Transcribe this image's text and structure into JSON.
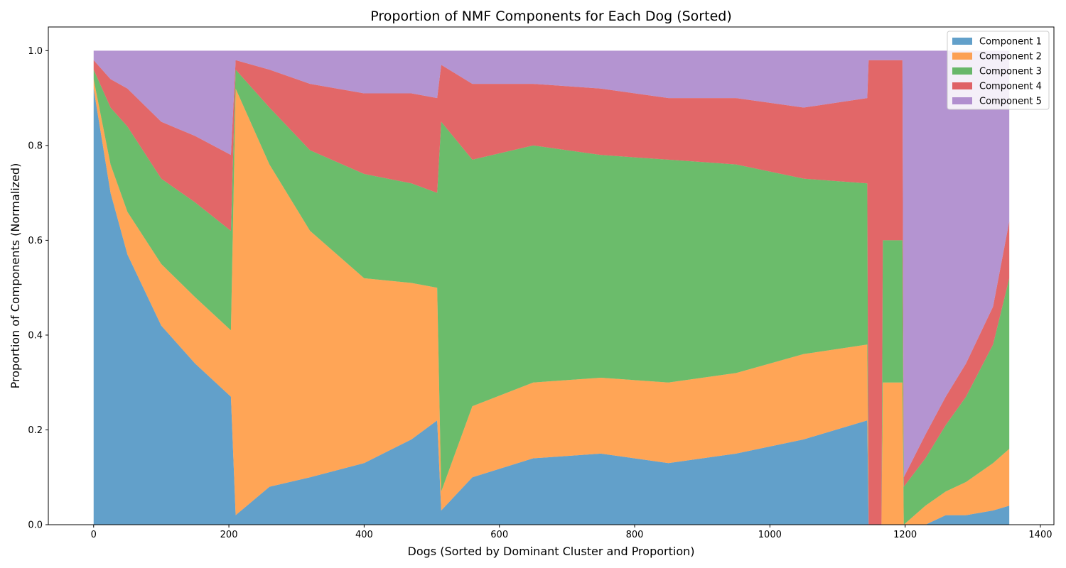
{
  "chart_data": {
    "type": "area",
    "stacked": true,
    "title": "Proportion of NMF Components for Each Dog (Sorted)",
    "xlabel": "Dogs (Sorted by Dominant Cluster and Proportion)",
    "ylabel": "Proportion of Components (Normalized)",
    "xlim": [
      -67,
      1420
    ],
    "ylim": [
      0,
      1.05
    ],
    "xticks": [
      0,
      200,
      400,
      600,
      800,
      1000,
      1200,
      1400
    ],
    "xtick_labels": [
      "0",
      "200",
      "400",
      "600",
      "800",
      "1000",
      "1200",
      "1400"
    ],
    "yticks": [
      0.0,
      0.2,
      0.4,
      0.6,
      0.8,
      1.0
    ],
    "ytick_labels": [
      "0.0",
      "0.2",
      "0.4",
      "0.6",
      "0.8",
      "1.0"
    ],
    "grid": false,
    "legend_position": "top-right",
    "n_dogs": 1354,
    "x": [
      0,
      25,
      50,
      100,
      150,
      203,
      210,
      260,
      320,
      400,
      470,
      508,
      514,
      560,
      650,
      750,
      850,
      950,
      1050,
      1144,
      1146,
      1165,
      1167,
      1196,
      1198,
      1230,
      1260,
      1290,
      1330,
      1354
    ],
    "series": [
      {
        "name": "Component 1",
        "color": "#1f77b4",
        "values": [
          0.92,
          0.7,
          0.57,
          0.42,
          0.34,
          0.27,
          0.02,
          0.08,
          0.1,
          0.13,
          0.18,
          0.22,
          0.03,
          0.1,
          0.14,
          0.15,
          0.13,
          0.15,
          0.18,
          0.22,
          0.0,
          0.0,
          0.0,
          0.0,
          0.0,
          0.0,
          0.02,
          0.02,
          0.03,
          0.04
        ]
      },
      {
        "name": "Component 2",
        "color": "#ff7f0e",
        "values": [
          0.02,
          0.06,
          0.09,
          0.13,
          0.14,
          0.14,
          0.9,
          0.68,
          0.52,
          0.39,
          0.33,
          0.28,
          0.04,
          0.15,
          0.16,
          0.16,
          0.17,
          0.17,
          0.18,
          0.16,
          0.0,
          0.0,
          0.3,
          0.3,
          0.0,
          0.04,
          0.05,
          0.07,
          0.1,
          0.12
        ]
      },
      {
        "name": "Component 3",
        "color": "#2ca02c",
        "values": [
          0.02,
          0.12,
          0.18,
          0.18,
          0.2,
          0.21,
          0.04,
          0.12,
          0.17,
          0.22,
          0.21,
          0.2,
          0.78,
          0.52,
          0.5,
          0.47,
          0.47,
          0.44,
          0.37,
          0.34,
          0.0,
          0.0,
          0.3,
          0.3,
          0.08,
          0.1,
          0.14,
          0.18,
          0.25,
          0.36
        ]
      },
      {
        "name": "Component 4",
        "color": "#d62728",
        "values": [
          0.02,
          0.06,
          0.08,
          0.12,
          0.14,
          0.16,
          0.02,
          0.08,
          0.14,
          0.17,
          0.19,
          0.2,
          0.12,
          0.16,
          0.13,
          0.14,
          0.13,
          0.14,
          0.15,
          0.18,
          0.98,
          0.98,
          0.38,
          0.38,
          0.02,
          0.05,
          0.06,
          0.07,
          0.08,
          0.12
        ]
      },
      {
        "name": "Component 5",
        "color": "#9467bd",
        "values": [
          0.02,
          0.06,
          0.08,
          0.15,
          0.18,
          0.22,
          0.02,
          0.04,
          0.07,
          0.09,
          0.09,
          0.1,
          0.03,
          0.07,
          0.07,
          0.08,
          0.1,
          0.1,
          0.12,
          0.1,
          0.02,
          0.02,
          0.02,
          0.02,
          0.9,
          0.81,
          0.73,
          0.66,
          0.54,
          0.36
        ]
      }
    ],
    "opacity": 0.7
  }
}
